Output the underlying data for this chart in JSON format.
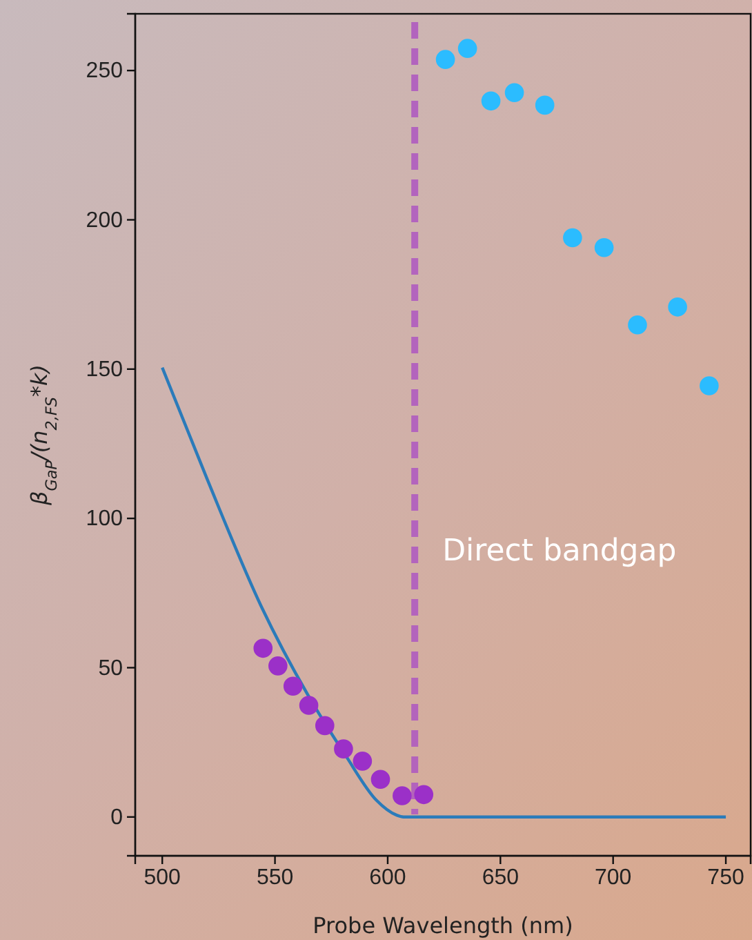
{
  "chart_data": {
    "type": "scatter",
    "xlabel": "Probe Wavelength (nm)",
    "ylabel": "β$_{GaP}$/(n$_{2,FS}$*k)",
    "xlim": [
      488,
      761
    ],
    "ylim": [
      -13,
      269
    ],
    "xticks": [
      500,
      550,
      600,
      650,
      700,
      750
    ],
    "yticks": [
      0,
      50,
      100,
      150,
      200,
      250
    ],
    "grid": false,
    "series": [
      {
        "type": "line",
        "color": "#2b7bba",
        "line_style": "solid",
        "x": [
          500,
          520,
          544,
          564.5,
          581,
          595,
          604,
          607,
          750
        ],
        "values": [
          150.5,
          113,
          70.4,
          41,
          21,
          5.6,
          0.6,
          0,
          0
        ]
      },
      {
        "color": "#9b30c8",
        "marker": "circle",
        "x": [
          544.7,
          551.3,
          558,
          565,
          572.1,
          580.4,
          588.8,
          596.8,
          606.4,
          616
        ],
        "values": [
          56.5,
          50.6,
          43.8,
          37.4,
          30.6,
          22.8,
          18.7,
          12.6,
          7.1,
          7.5
        ]
      },
      {
        "color": "#2bbcff",
        "marker": "circle",
        "x": [
          625.6,
          635.4,
          645.8,
          656.2,
          669.7,
          682,
          696,
          710.8,
          728.6,
          742.6
        ],
        "values": [
          253.7,
          257.4,
          239.8,
          242.6,
          238.4,
          194,
          190.7,
          164.8,
          170.8,
          144.4
        ]
      }
    ],
    "ref_lines": [
      {
        "axis": "x",
        "value": 612,
        "label": "Direct bandgap",
        "color": "#b05cc0",
        "line_style": "dashed"
      }
    ]
  }
}
